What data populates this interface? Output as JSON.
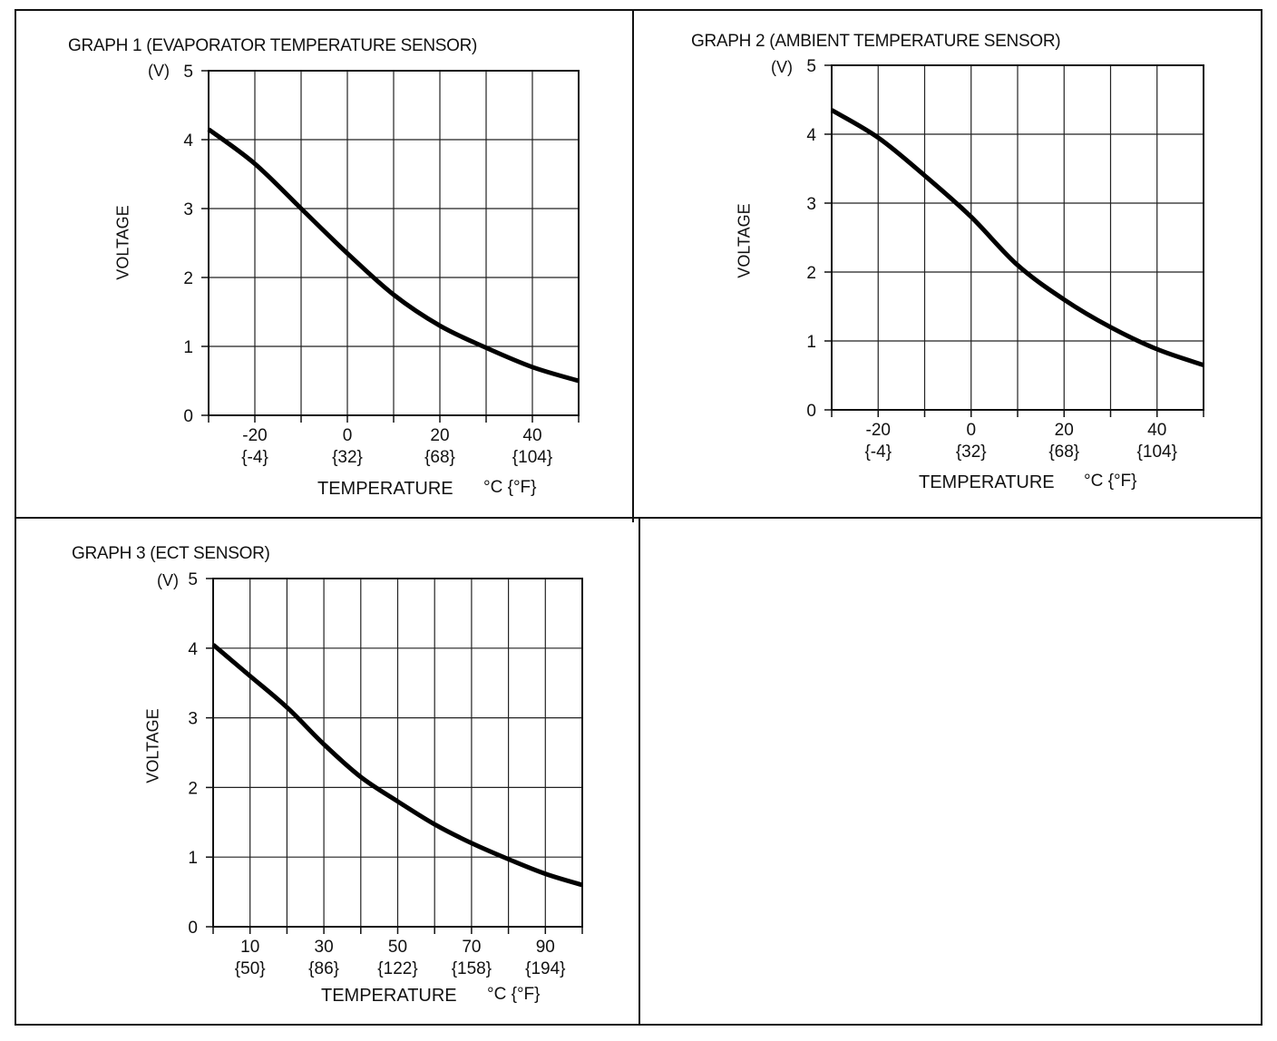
{
  "chart_data": [
    {
      "type": "line",
      "title": "GRAPH 1 (EVAPORATOR TEMPERATURE SENSOR)",
      "y_unit": "(V)",
      "ylabel": "VOLTAGE",
      "xlabel": "TEMPERATURE",
      "x_unit": "°C {°F}",
      "xlim": [
        -30,
        50
      ],
      "ylim": [
        0,
        5
      ],
      "x_grid_step": 10,
      "y_ticks": [
        "0",
        "1",
        "2",
        "3",
        "4",
        "5"
      ],
      "x_ticks": [
        {
          "value": -20,
          "c": "-20",
          "f": "{-4}"
        },
        {
          "value": 0,
          "c": "0",
          "f": "{32}"
        },
        {
          "value": 20,
          "c": "20",
          "f": "{68}"
        },
        {
          "value": 40,
          "c": "40",
          "f": "{104}"
        }
      ],
      "series": [
        {
          "name": "Voltage",
          "x": [
            -30,
            -20,
            -10,
            0,
            10,
            20,
            30,
            40,
            50
          ],
          "y": [
            4.15,
            3.65,
            3.0,
            2.35,
            1.75,
            1.3,
            0.98,
            0.7,
            0.5
          ]
        }
      ]
    },
    {
      "type": "line",
      "title": "GRAPH 2 (AMBIENT TEMPERATURE SENSOR)",
      "y_unit": "(V)",
      "ylabel": "VOLTAGE",
      "xlabel": "TEMPERATURE",
      "x_unit": "°C {°F}",
      "xlim": [
        -30,
        50
      ],
      "ylim": [
        0,
        5
      ],
      "x_grid_step": 10,
      "y_ticks": [
        "0",
        "1",
        "2",
        "3",
        "4",
        "5"
      ],
      "x_ticks": [
        {
          "value": -20,
          "c": "-20",
          "f": "{-4}"
        },
        {
          "value": 0,
          "c": "0",
          "f": "{32}"
        },
        {
          "value": 20,
          "c": "20",
          "f": "{68}"
        },
        {
          "value": 40,
          "c": "40",
          "f": "{104}"
        }
      ],
      "series": [
        {
          "name": "Voltage",
          "x": [
            -30,
            -20,
            -10,
            0,
            10,
            20,
            30,
            40,
            50
          ],
          "y": [
            4.35,
            3.95,
            3.4,
            2.8,
            2.1,
            1.6,
            1.2,
            0.88,
            0.65
          ]
        }
      ]
    },
    {
      "type": "line",
      "title": "GRAPH 3 (ECT SENSOR)",
      "y_unit": "(V)",
      "ylabel": "VOLTAGE",
      "xlabel": "TEMPERATURE",
      "x_unit": "°C {°F}",
      "xlim": [
        0,
        100
      ],
      "ylim": [
        0,
        5
      ],
      "x_grid_step": 10,
      "y_ticks": [
        "0",
        "1",
        "2",
        "3",
        "4",
        "5"
      ],
      "x_ticks": [
        {
          "value": 10,
          "c": "10",
          "f": "{50}"
        },
        {
          "value": 30,
          "c": "30",
          "f": "{86}"
        },
        {
          "value": 50,
          "c": "50",
          "f": "{122}"
        },
        {
          "value": 70,
          "c": "70",
          "f": "{158}"
        },
        {
          "value": 90,
          "c": "90",
          "f": "{194}"
        }
      ],
      "series": [
        {
          "name": "Voltage",
          "x": [
            0,
            10,
            20,
            30,
            40,
            50,
            60,
            70,
            80,
            90,
            100
          ],
          "y": [
            4.05,
            3.6,
            3.15,
            2.62,
            2.15,
            1.8,
            1.47,
            1.2,
            0.97,
            0.76,
            0.6
          ]
        }
      ]
    }
  ]
}
